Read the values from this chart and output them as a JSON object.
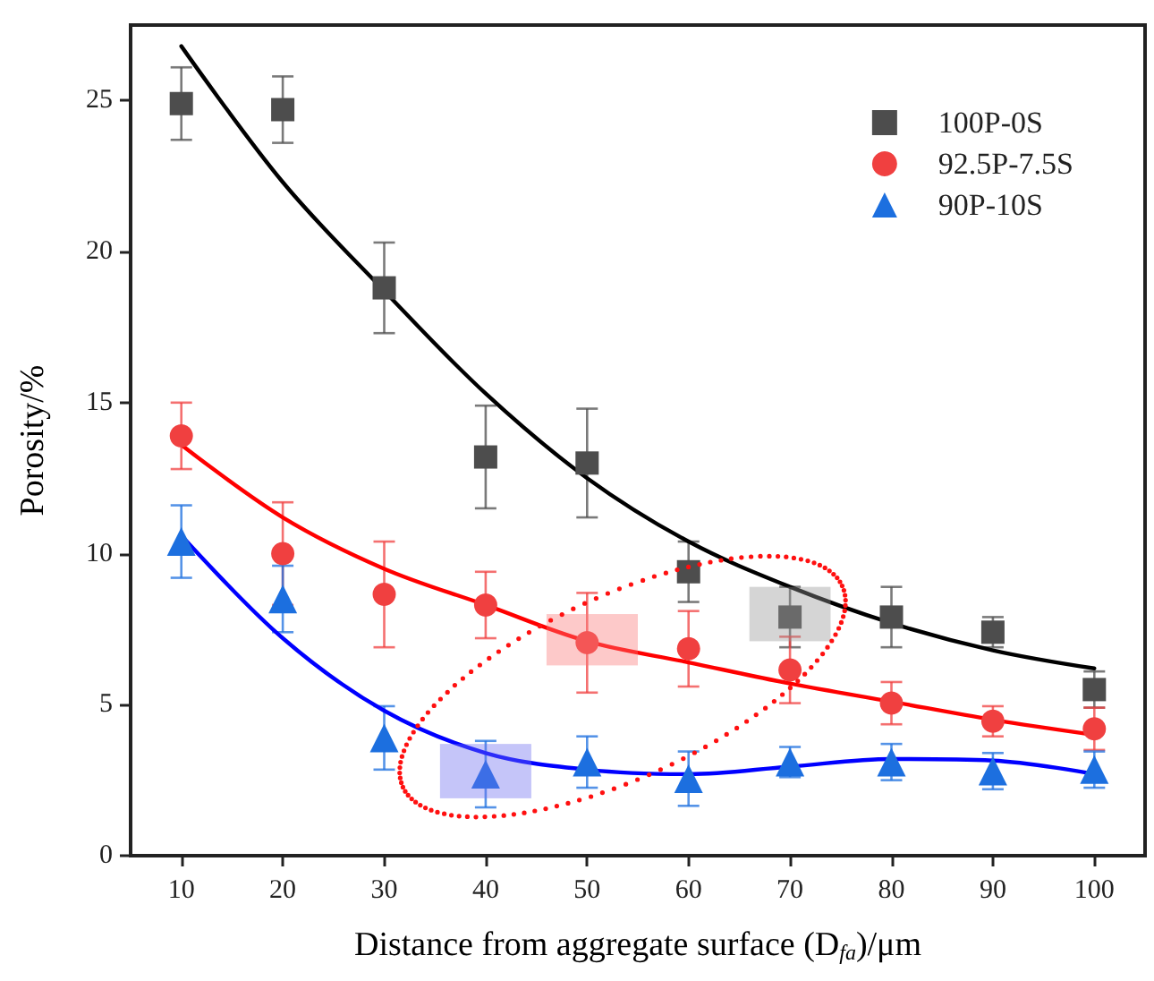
{
  "chart_data": {
    "type": "scatter",
    "xlabel": "Distance from aggregate surface (D$_{fa}$)/μm",
    "ylabel": "Porosity/%",
    "x": [
      10,
      20,
      30,
      40,
      50,
      60,
      70,
      80,
      90,
      100
    ],
    "xlim": [
      5,
      105
    ],
    "xticks": [
      10,
      20,
      30,
      40,
      50,
      60,
      70,
      80,
      90,
      100
    ],
    "ylim": [
      0,
      27.5
    ],
    "yticks": [
      0,
      5,
      10,
      15,
      20,
      25
    ],
    "grid": false,
    "legend": "top right",
    "series": [
      {
        "name": "100P-0S",
        "marker": "square",
        "color": "#4d4d4d",
        "values": [
          24.9,
          24.7,
          18.8,
          13.2,
          13.0,
          9.4,
          7.9,
          7.9,
          7.4,
          5.5
        ],
        "errors": [
          1.2,
          1.1,
          1.5,
          1.7,
          1.8,
          1.0,
          1.0,
          1.0,
          0.5,
          0.6
        ]
      },
      {
        "name": "92.5P-7.5S",
        "marker": "circle",
        "color": "#f04040",
        "values": [
          13.9,
          10.0,
          8.65,
          8.3,
          7.05,
          6.85,
          6.15,
          5.05,
          4.45,
          4.2
        ],
        "errors": [
          1.1,
          1.7,
          1.75,
          1.1,
          1.65,
          1.25,
          1.1,
          0.7,
          0.5,
          0.7
        ]
      },
      {
        "name": "90P-10S",
        "marker": "triangle",
        "color": "#1c6fdf",
        "values": [
          10.4,
          8.5,
          3.9,
          2.7,
          3.1,
          2.55,
          3.1,
          3.1,
          2.8,
          2.85
        ],
        "errors": [
          1.2,
          1.1,
          1.05,
          1.1,
          0.85,
          0.9,
          0.5,
          0.6,
          0.6,
          0.6
        ]
      },
      {
        "type": "line",
        "marker": "none",
        "color": "#000000",
        "x": [
          10,
          20,
          30,
          40,
          50,
          60,
          70,
          80,
          90,
          100
        ],
        "values": [
          26.8,
          22.3,
          18.7,
          15.3,
          12.5,
          10.4,
          8.9,
          7.7,
          6.8,
          6.2
        ]
      },
      {
        "type": "line",
        "marker": "none",
        "color": "#ff0000",
        "x": [
          10,
          20,
          30,
          40,
          50,
          60,
          70,
          80,
          90,
          100
        ],
        "values": [
          13.6,
          11.2,
          9.5,
          8.3,
          7.1,
          6.4,
          5.7,
          5.1,
          4.5,
          4.0
        ]
      },
      {
        "type": "line",
        "marker": "none",
        "color": "#0000ff",
        "x": [
          10,
          20,
          30,
          40,
          50,
          60,
          70,
          80,
          90,
          100
        ],
        "values": [
          10.6,
          7.2,
          4.8,
          3.4,
          2.85,
          2.7,
          2.95,
          3.2,
          3.15,
          2.7
        ]
      }
    ]
  }
}
